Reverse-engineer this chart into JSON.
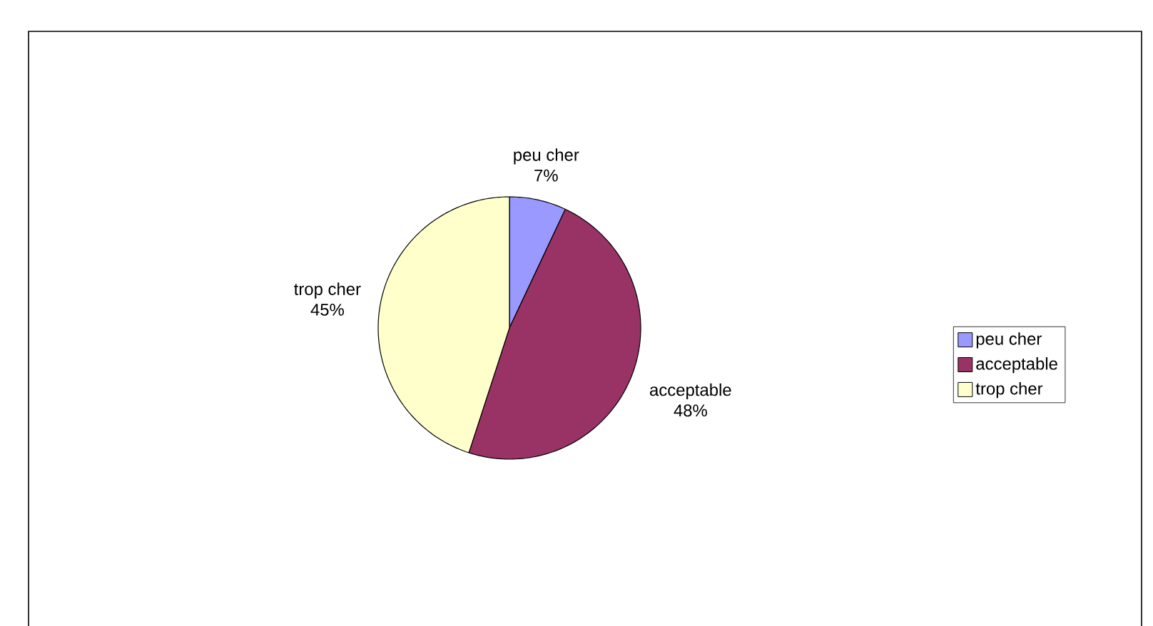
{
  "chart_data": {
    "type": "pie",
    "categories": [
      "peu cher",
      "acceptable",
      "trop cher"
    ],
    "values": [
      7,
      48,
      45
    ],
    "colors": [
      "#9999ff",
      "#993366",
      "#ffffcc"
    ],
    "value_labels": [
      "7%",
      "48%",
      "45%"
    ],
    "legend": "right"
  }
}
